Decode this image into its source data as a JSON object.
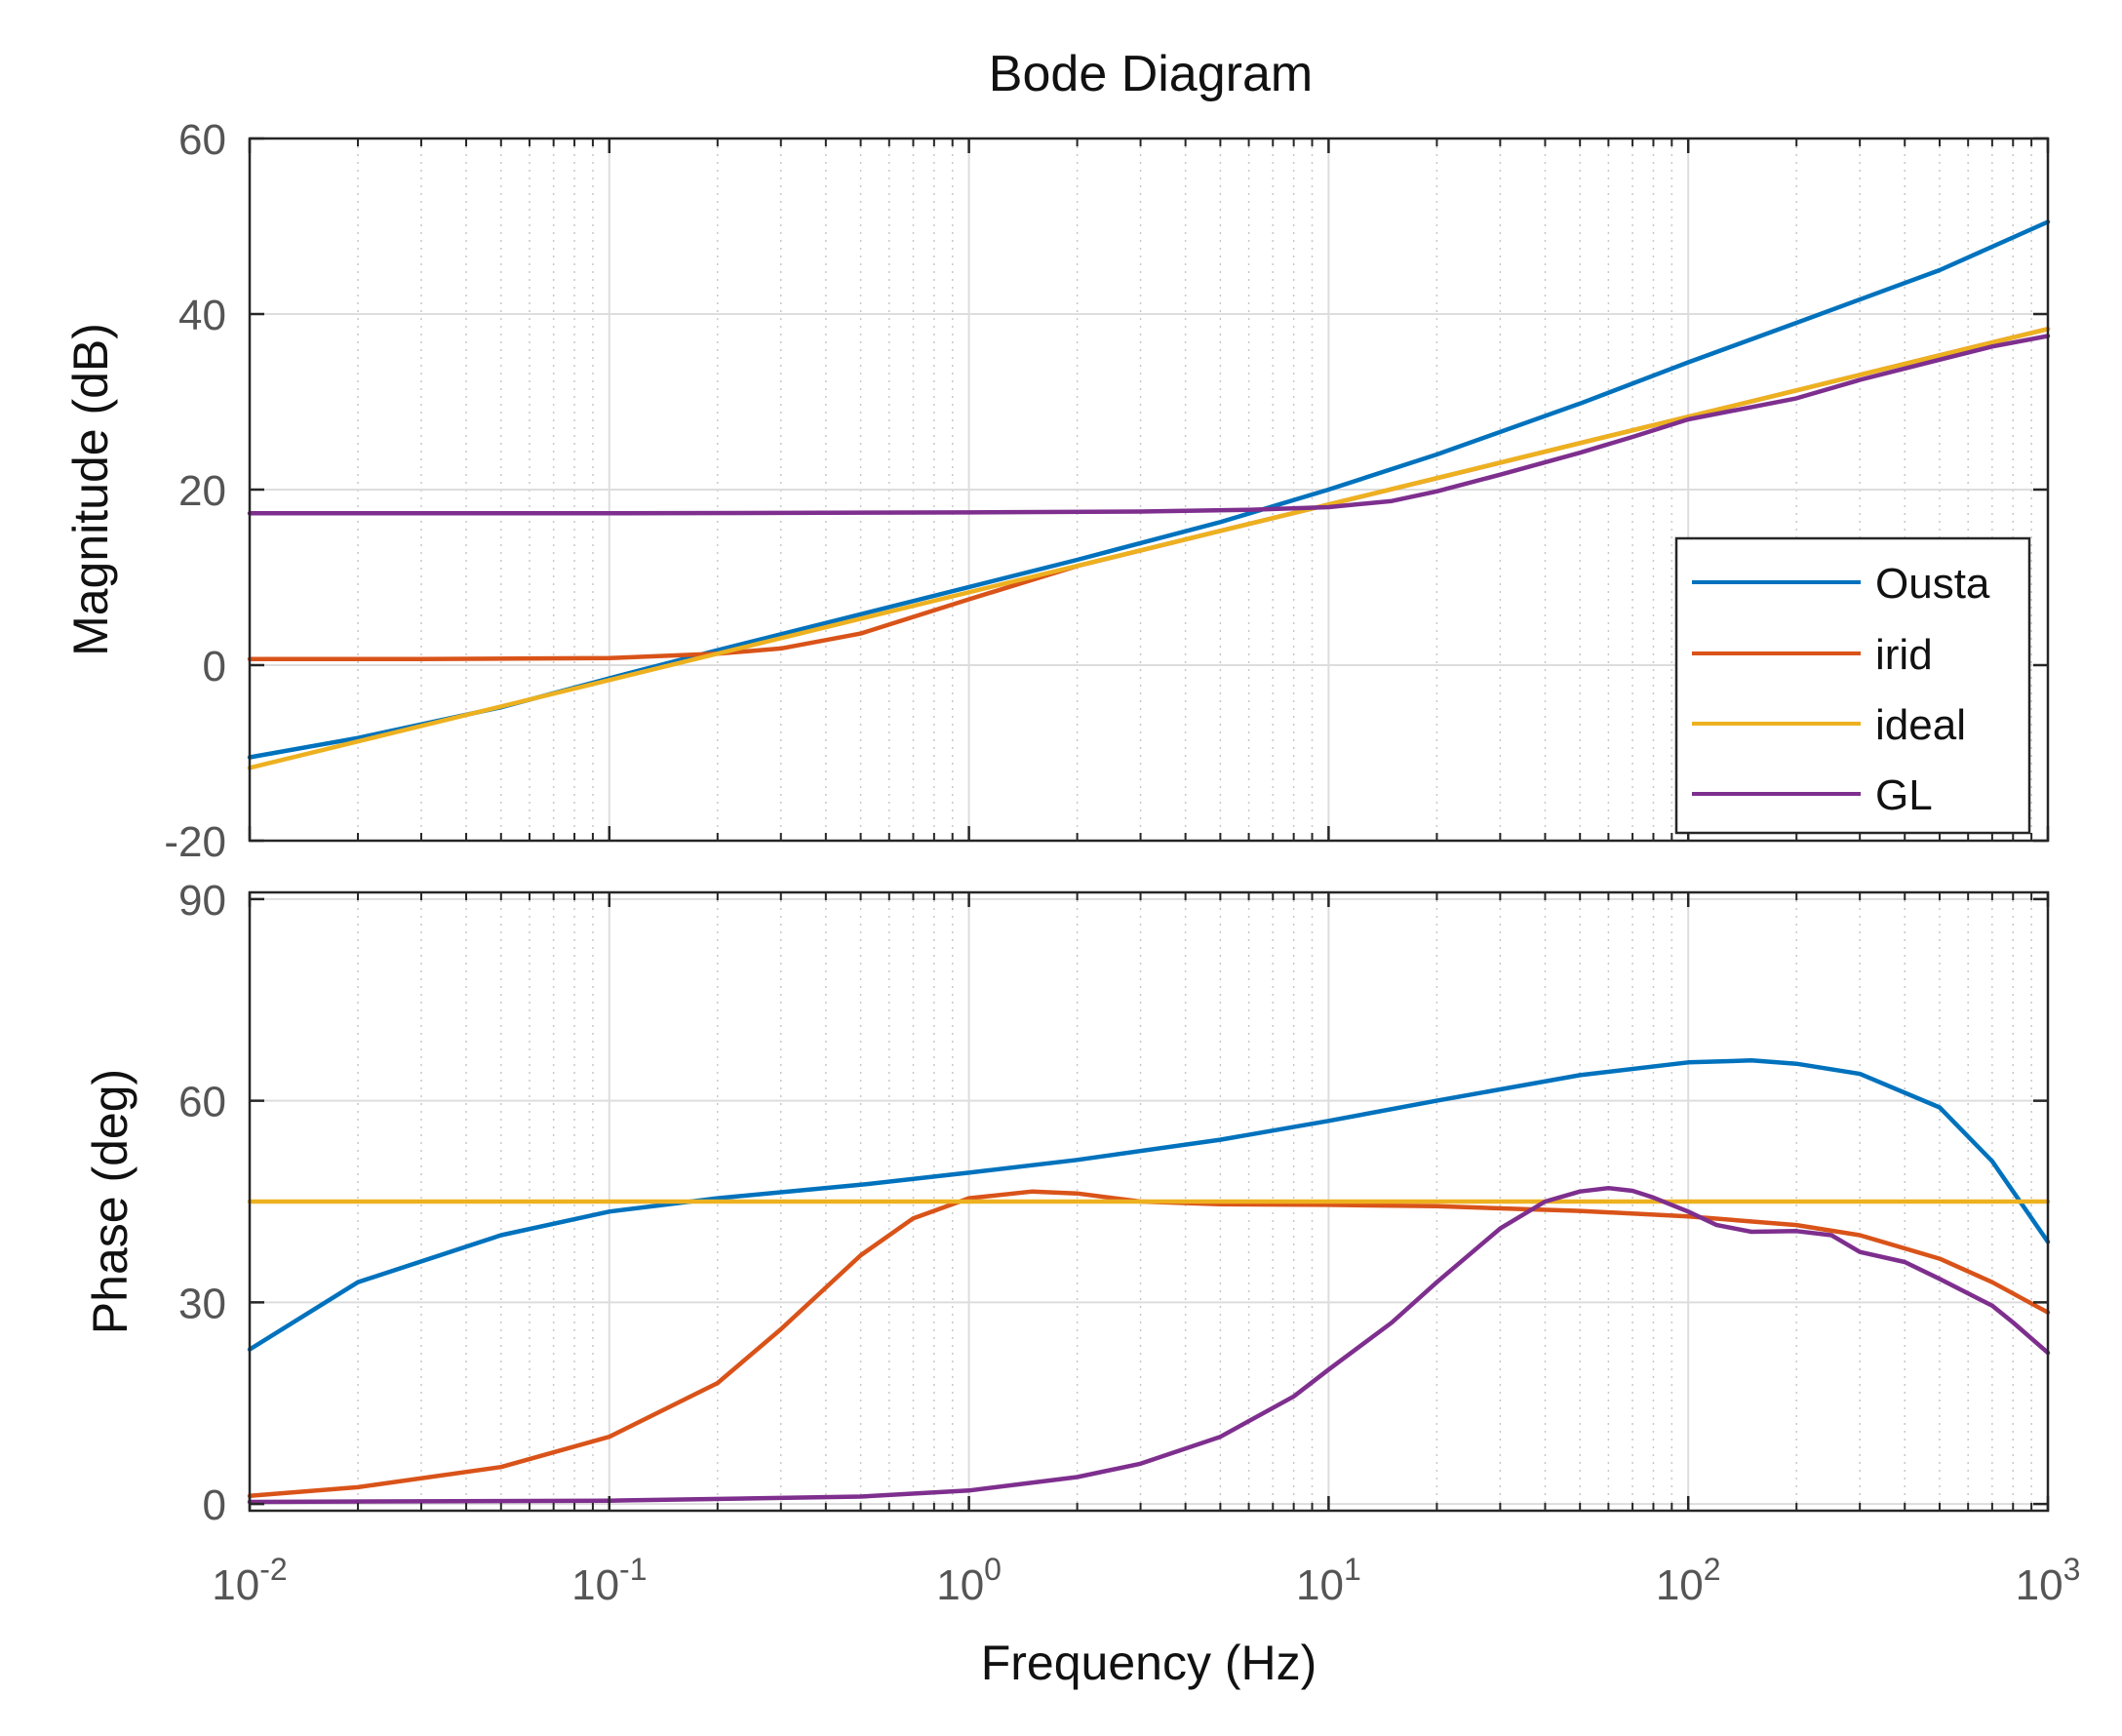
{
  "chart_data": {
    "type": "line",
    "title": "Bode Diagram",
    "xlabel": "Frequency  (Hz)",
    "xscale": "log",
    "xlim": [
      0.01,
      1000
    ],
    "x_ticks": [
      {
        "base": "10",
        "exp": "-2",
        "value": 0.01
      },
      {
        "base": "10",
        "exp": "-1",
        "value": 0.1
      },
      {
        "base": "10",
        "exp": "0",
        "value": 1
      },
      {
        "base": "10",
        "exp": "1",
        "value": 10
      },
      {
        "base": "10",
        "exp": "2",
        "value": 100
      },
      {
        "base": "10",
        "exp": "3",
        "value": 1000
      }
    ],
    "grid": true,
    "legend_position": "right",
    "series_colors": {
      "Ousta": "#0072BD",
      "irid": "#D95319",
      "ideal": "#EDB120",
      "GL": "#7E2F8E"
    },
    "subplots": [
      {
        "name": "magnitude",
        "ylabel": "Magnitude (dB)",
        "ylim": [
          -20,
          60
        ],
        "yticks": [
          "-20",
          "0",
          "20",
          "40",
          "60"
        ],
        "ytick_values": [
          -20,
          0,
          20,
          40,
          60
        ],
        "series": [
          {
            "name": "Ousta",
            "points": [
              [
                0.01,
                -10.5
              ],
              [
                0.02,
                -8.3
              ],
              [
                0.05,
                -4.8
              ],
              [
                0.1,
                -1.5
              ],
              [
                0.2,
                1.7
              ],
              [
                0.5,
                5.8
              ],
              [
                1,
                8.9
              ],
              [
                2,
                12
              ],
              [
                5,
                16.3
              ],
              [
                10,
                20
              ],
              [
                20,
                24
              ],
              [
                50,
                29.8
              ],
              [
                100,
                34.5
              ],
              [
                200,
                39
              ],
              [
                500,
                45
              ],
              [
                1000,
                50.5
              ]
            ]
          },
          {
            "name": "irid",
            "points": [
              [
                0.01,
                0.7
              ],
              [
                0.03,
                0.7
              ],
              [
                0.1,
                0.8
              ],
              [
                0.2,
                1.3
              ],
              [
                0.3,
                1.9
              ],
              [
                0.5,
                3.6
              ],
              [
                1,
                7.5
              ],
              [
                2,
                11.3
              ],
              [
                5,
                15.3
              ],
              [
                10,
                18.3
              ],
              [
                20,
                21.3
              ],
              [
                50,
                25.3
              ],
              [
                100,
                28.3
              ],
              [
                200,
                31.3
              ],
              [
                500,
                35.3
              ],
              [
                1000,
                38.3
              ]
            ]
          },
          {
            "name": "ideal",
            "points": [
              [
                0.01,
                -11.7
              ],
              [
                0.1,
                -1.7
              ],
              [
                1,
                8.3
              ],
              [
                10,
                18.3
              ],
              [
                100,
                28.3
              ],
              [
                1000,
                38.3
              ]
            ]
          },
          {
            "name": "GL",
            "points": [
              [
                0.01,
                17.3
              ],
              [
                0.1,
                17.3
              ],
              [
                1,
                17.4
              ],
              [
                3,
                17.5
              ],
              [
                6,
                17.7
              ],
              [
                10,
                18
              ],
              [
                15,
                18.7
              ],
              [
                20,
                19.8
              ],
              [
                30,
                21.7
              ],
              [
                50,
                24.2
              ],
              [
                70,
                26
              ],
              [
                100,
                28
              ],
              [
                150,
                29.4
              ],
              [
                200,
                30.4
              ],
              [
                300,
                32.5
              ],
              [
                500,
                34.8
              ],
              [
                700,
                36.3
              ],
              [
                1000,
                37.5
              ]
            ]
          }
        ]
      },
      {
        "name": "phase",
        "ylabel": "Phase (deg)",
        "ylim": [
          -1,
          91
        ],
        "yticks": [
          "0",
          "30",
          "60",
          "90"
        ],
        "ytick_values": [
          0,
          30,
          60,
          90
        ],
        "series": [
          {
            "name": "Ousta",
            "points": [
              [
                0.01,
                23
              ],
              [
                0.02,
                33
              ],
              [
                0.05,
                40
              ],
              [
                0.1,
                43.5
              ],
              [
                0.2,
                45.5
              ],
              [
                0.5,
                47.5
              ],
              [
                1,
                49.3
              ],
              [
                2,
                51.2
              ],
              [
                5,
                54.2
              ],
              [
                10,
                57
              ],
              [
                20,
                60
              ],
              [
                50,
                63.8
              ],
              [
                100,
                65.7
              ],
              [
                150,
                66
              ],
              [
                200,
                65.5
              ],
              [
                300,
                64
              ],
              [
                500,
                59
              ],
              [
                700,
                51
              ],
              [
                1000,
                39
              ]
            ]
          },
          {
            "name": "irid",
            "points": [
              [
                0.01,
                1.2
              ],
              [
                0.02,
                2.5
              ],
              [
                0.05,
                5.5
              ],
              [
                0.1,
                10
              ],
              [
                0.2,
                18
              ],
              [
                0.3,
                26
              ],
              [
                0.5,
                37
              ],
              [
                0.7,
                42.5
              ],
              [
                1,
                45.5
              ],
              [
                1.5,
                46.5
              ],
              [
                2,
                46.2
              ],
              [
                3,
                45
              ],
              [
                5,
                44.6
              ],
              [
                10,
                44.5
              ],
              [
                20,
                44.3
              ],
              [
                50,
                43.6
              ],
              [
                100,
                42.8
              ],
              [
                200,
                41.5
              ],
              [
                300,
                40
              ],
              [
                500,
                36.5
              ],
              [
                700,
                33
              ],
              [
                1000,
                28.5
              ]
            ]
          },
          {
            "name": "ideal",
            "points": [
              [
                0.01,
                45
              ],
              [
                1000,
                45
              ]
            ]
          },
          {
            "name": "GL",
            "points": [
              [
                0.01,
                0.3
              ],
              [
                0.1,
                0.5
              ],
              [
                0.5,
                1.1
              ],
              [
                1,
                2
              ],
              [
                2,
                4
              ],
              [
                3,
                6
              ],
              [
                5,
                10
              ],
              [
                8,
                16
              ],
              [
                10,
                20
              ],
              [
                15,
                27
              ],
              [
                20,
                33
              ],
              [
                30,
                41
              ],
              [
                40,
                45
              ],
              [
                50,
                46.5
              ],
              [
                60,
                47
              ],
              [
                70,
                46.6
              ],
              [
                80,
                45.6
              ],
              [
                100,
                43.5
              ],
              [
                120,
                41.5
              ],
              [
                150,
                40.5
              ],
              [
                200,
                40.6
              ],
              [
                250,
                40
              ],
              [
                300,
                37.5
              ],
              [
                400,
                36
              ],
              [
                500,
                33.5
              ],
              [
                700,
                29.5
              ],
              [
                800,
                27
              ],
              [
                1000,
                22.5
              ]
            ]
          }
        ]
      }
    ]
  }
}
